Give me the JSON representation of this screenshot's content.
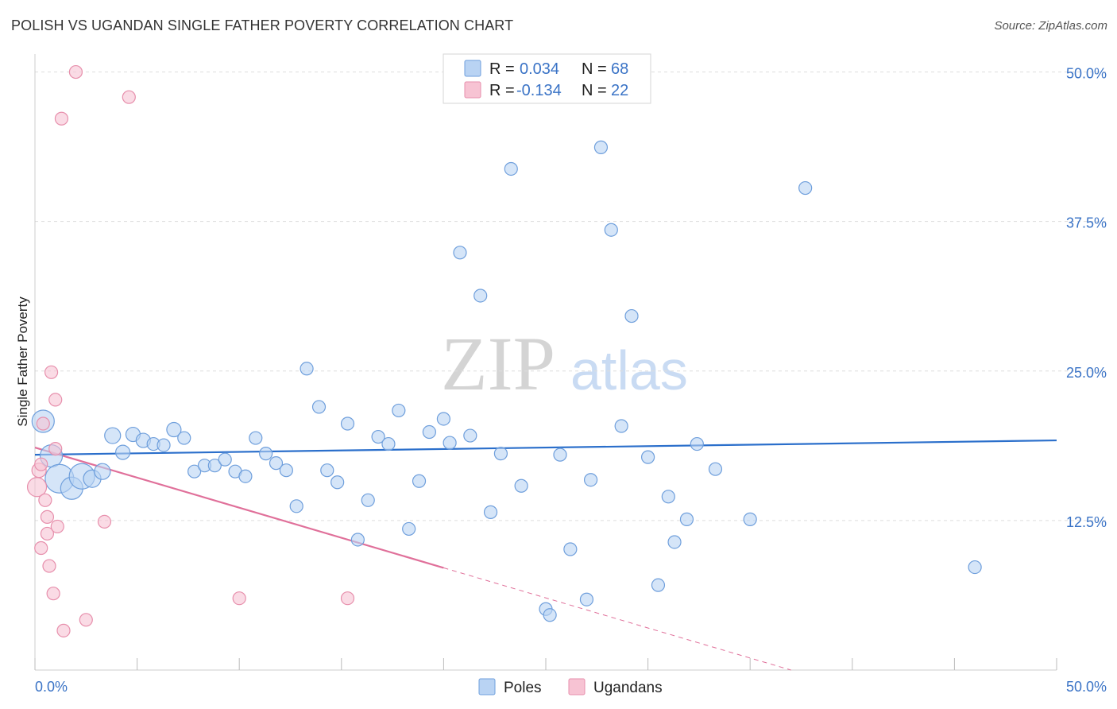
{
  "header": {
    "title": "POLISH VS UGANDAN SINGLE FATHER POVERTY CORRELATION CHART",
    "source": "Source: ZipAtlas.com"
  },
  "watermark": {
    "zip": "ZIP",
    "atlas": "atlas"
  },
  "legend": {
    "rows": [
      {
        "r_label": "R =",
        "r_value": "0.034",
        "n_label": "N =",
        "n_value": "68"
      },
      {
        "r_label": "R =",
        "r_value": "-0.134",
        "n_label": "N =",
        "n_value": "22"
      }
    ]
  },
  "bottom_legend": {
    "poles": "Poles",
    "ugandans": "Ugandans"
  },
  "colors": {
    "poles_fill": "#b9d3f3",
    "poles_stroke": "#6f9fdc",
    "poles_line": "#2b6fcb",
    "ugandans_fill": "#f7c3d3",
    "ugandans_stroke": "#e78fac",
    "ugandans_line": "#e0709a",
    "tick_text": "#3a73c6",
    "grid": "#dddddd"
  },
  "chart_data": {
    "type": "scatter",
    "title": "POLISH VS UGANDAN SINGLE FATHER POVERTY CORRELATION CHART",
    "xlabel": "",
    "ylabel": "Single Father Poverty",
    "xlim": [
      0,
      50
    ],
    "ylim": [
      0,
      51.5
    ],
    "x_tick_labels": [
      "0.0%",
      "50.0%"
    ],
    "y_ticks": [
      12.5,
      25.0,
      37.5,
      50.0
    ],
    "y_tick_labels": [
      "12.5%",
      "25.0%",
      "37.5%",
      "50.0%"
    ],
    "grid": true,
    "series": [
      {
        "name": "Poles",
        "r": 0.034,
        "n": 68,
        "trend": {
          "x": [
            0,
            50
          ],
          "y": [
            18.0,
            19.2
          ],
          "dashed_from_x": null
        },
        "points": [
          [
            0.4,
            20.8,
            14
          ],
          [
            0.8,
            17.9,
            14
          ],
          [
            1.2,
            16.0,
            18
          ],
          [
            1.8,
            15.2,
            14
          ],
          [
            2.3,
            16.2,
            16
          ],
          [
            2.8,
            16.0,
            11
          ],
          [
            3.3,
            16.6,
            10
          ],
          [
            3.8,
            19.6,
            10
          ],
          [
            4.3,
            18.2,
            9
          ],
          [
            4.8,
            19.7,
            9
          ],
          [
            5.3,
            19.2,
            9
          ],
          [
            5.8,
            18.9,
            8
          ],
          [
            6.3,
            18.8,
            8
          ],
          [
            6.8,
            20.1,
            9
          ],
          [
            7.3,
            19.4,
            8
          ],
          [
            7.8,
            16.6,
            8
          ],
          [
            8.3,
            17.1,
            8
          ],
          [
            8.8,
            17.1,
            8
          ],
          [
            9.3,
            17.6,
            8
          ],
          [
            9.8,
            16.6,
            8
          ],
          [
            10.3,
            16.2,
            8
          ],
          [
            10.8,
            19.4,
            8
          ],
          [
            11.3,
            18.1,
            8
          ],
          [
            11.8,
            17.3,
            8
          ],
          [
            12.3,
            16.7,
            8
          ],
          [
            12.8,
            13.7,
            8
          ],
          [
            13.3,
            25.2,
            8
          ],
          [
            13.9,
            22.0,
            8
          ],
          [
            14.3,
            16.7,
            8
          ],
          [
            14.8,
            15.7,
            8
          ],
          [
            15.3,
            20.6,
            8
          ],
          [
            15.8,
            10.9,
            8
          ],
          [
            16.3,
            14.2,
            8
          ],
          [
            16.8,
            19.5,
            8
          ],
          [
            17.3,
            18.9,
            8
          ],
          [
            17.8,
            21.7,
            8
          ],
          [
            18.3,
            11.8,
            8
          ],
          [
            18.8,
            15.8,
            8
          ],
          [
            19.3,
            19.9,
            8
          ],
          [
            20.0,
            21.0,
            8
          ],
          [
            20.3,
            19.0,
            8
          ],
          [
            20.8,
            34.9,
            8
          ],
          [
            21.3,
            19.6,
            8
          ],
          [
            21.8,
            31.3,
            8
          ],
          [
            22.3,
            13.2,
            8
          ],
          [
            22.8,
            18.1,
            8
          ],
          [
            23.3,
            41.9,
            8
          ],
          [
            23.8,
            15.4,
            8
          ],
          [
            25.0,
            5.1,
            8
          ],
          [
            25.2,
            4.6,
            8
          ],
          [
            25.7,
            18.0,
            8
          ],
          [
            26.2,
            10.1,
            8
          ],
          [
            27.0,
            5.9,
            8
          ],
          [
            27.2,
            15.9,
            8
          ],
          [
            27.7,
            43.7,
            8
          ],
          [
            28.2,
            36.8,
            8
          ],
          [
            28.7,
            20.4,
            8
          ],
          [
            29.2,
            29.6,
            8
          ],
          [
            30.0,
            17.8,
            8
          ],
          [
            30.5,
            7.1,
            8
          ],
          [
            31.0,
            14.5,
            8
          ],
          [
            31.3,
            10.7,
            8
          ],
          [
            31.9,
            12.6,
            8
          ],
          [
            32.4,
            18.9,
            8
          ],
          [
            33.3,
            16.8,
            8
          ],
          [
            35.0,
            12.6,
            8
          ],
          [
            37.7,
            40.3,
            8
          ],
          [
            46.0,
            8.6,
            8
          ]
        ]
      },
      {
        "name": "Ugandans",
        "r": -0.134,
        "n": 22,
        "trend": {
          "x": [
            0,
            37
          ],
          "y": [
            18.6,
            0
          ],
          "dashed_from_x": 20
        },
        "points": [
          [
            0.1,
            15.3,
            12
          ],
          [
            0.2,
            16.7,
            9
          ],
          [
            0.3,
            17.2,
            8
          ],
          [
            0.3,
            10.2,
            8
          ],
          [
            0.4,
            20.6,
            8
          ],
          [
            0.5,
            14.2,
            8
          ],
          [
            0.6,
            12.8,
            8
          ],
          [
            0.6,
            11.4,
            8
          ],
          [
            0.7,
            8.7,
            8
          ],
          [
            0.8,
            24.9,
            8
          ],
          [
            0.9,
            6.4,
            8
          ],
          [
            1.0,
            22.6,
            8
          ],
          [
            1.0,
            18.5,
            8
          ],
          [
            1.1,
            12.0,
            8
          ],
          [
            1.3,
            46.1,
            8
          ],
          [
            1.4,
            3.3,
            8
          ],
          [
            2.0,
            50.0,
            8
          ],
          [
            2.5,
            4.2,
            8
          ],
          [
            3.4,
            12.4,
            8
          ],
          [
            4.6,
            47.9,
            8
          ],
          [
            10.0,
            6.0,
            8
          ],
          [
            15.3,
            6.0,
            8
          ]
        ]
      }
    ]
  }
}
